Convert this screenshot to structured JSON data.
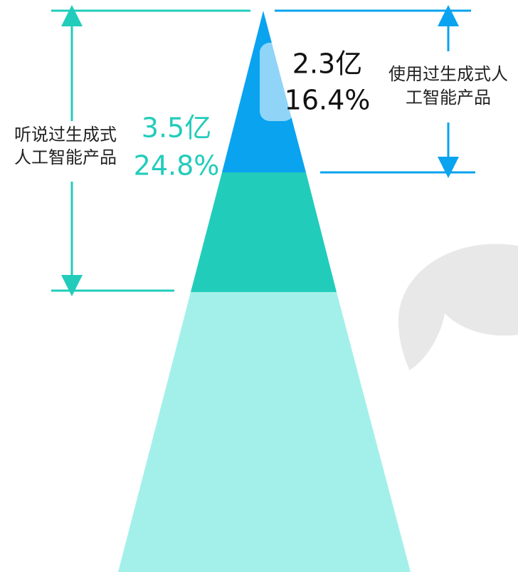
{
  "pyramid": {
    "left": {
      "label_lines": [
        "听说过生成式",
        "人工智能产品"
      ],
      "amount": "3.5亿",
      "share": "24.8%"
    },
    "right": {
      "label_lines": [
        "使用过生成式人",
        "工智能产品"
      ],
      "amount": "2.3亿",
      "share": "16.4%"
    }
  }
}
